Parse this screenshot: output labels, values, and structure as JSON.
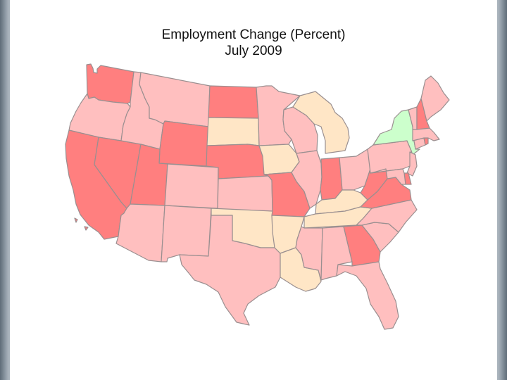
{
  "title_line1": "Employment Change (Percent)",
  "title_line2": "July 2009",
  "colors": {
    "strong_loss": "#ff7f7f",
    "moderate_loss": "#ffbfbf",
    "small_loss": "#ffe6c6",
    "gain": "#ccffcc",
    "border": "#9a8f90"
  },
  "states": [
    {
      "id": "WA",
      "class": "strong_loss"
    },
    {
      "id": "OR",
      "class": "moderate_loss"
    },
    {
      "id": "CA",
      "class": "strong_loss"
    },
    {
      "id": "NV",
      "class": "strong_loss"
    },
    {
      "id": "ID",
      "class": "moderate_loss"
    },
    {
      "id": "MT",
      "class": "moderate_loss"
    },
    {
      "id": "WY",
      "class": "strong_loss"
    },
    {
      "id": "UT",
      "class": "strong_loss"
    },
    {
      "id": "AZ",
      "class": "moderate_loss"
    },
    {
      "id": "CO",
      "class": "moderate_loss"
    },
    {
      "id": "NM",
      "class": "moderate_loss"
    },
    {
      "id": "ND",
      "class": "strong_loss"
    },
    {
      "id": "SD",
      "class": "small_loss"
    },
    {
      "id": "NE",
      "class": "strong_loss"
    },
    {
      "id": "KS",
      "class": "moderate_loss"
    },
    {
      "id": "OK",
      "class": "small_loss"
    },
    {
      "id": "TX",
      "class": "moderate_loss"
    },
    {
      "id": "MN",
      "class": "moderate_loss"
    },
    {
      "id": "IA",
      "class": "small_loss"
    },
    {
      "id": "MO",
      "class": "strong_loss"
    },
    {
      "id": "AR",
      "class": "small_loss"
    },
    {
      "id": "LA",
      "class": "small_loss"
    },
    {
      "id": "WI",
      "class": "moderate_loss"
    },
    {
      "id": "IL",
      "class": "moderate_loss"
    },
    {
      "id": "MI",
      "class": "small_loss"
    },
    {
      "id": "IN",
      "class": "strong_loss"
    },
    {
      "id": "OH",
      "class": "moderate_loss"
    },
    {
      "id": "KY",
      "class": "small_loss"
    },
    {
      "id": "TN",
      "class": "small_loss"
    },
    {
      "id": "MS",
      "class": "moderate_loss"
    },
    {
      "id": "AL",
      "class": "moderate_loss"
    },
    {
      "id": "GA",
      "class": "strong_loss"
    },
    {
      "id": "FL",
      "class": "moderate_loss"
    },
    {
      "id": "SC",
      "class": "moderate_loss"
    },
    {
      "id": "NC",
      "class": "moderate_loss"
    },
    {
      "id": "VA",
      "class": "strong_loss"
    },
    {
      "id": "WV",
      "class": "strong_loss"
    },
    {
      "id": "PA",
      "class": "moderate_loss"
    },
    {
      "id": "NY",
      "class": "gain"
    },
    {
      "id": "NJ",
      "class": "moderate_loss"
    },
    {
      "id": "DE",
      "class": "strong_loss"
    },
    {
      "id": "MD",
      "class": "moderate_loss"
    },
    {
      "id": "CT",
      "class": "moderate_loss"
    },
    {
      "id": "RI",
      "class": "strong_loss"
    },
    {
      "id": "MA",
      "class": "moderate_loss"
    },
    {
      "id": "VT",
      "class": "moderate_loss"
    },
    {
      "id": "NH",
      "class": "strong_loss"
    },
    {
      "id": "ME",
      "class": "moderate_loss"
    }
  ]
}
